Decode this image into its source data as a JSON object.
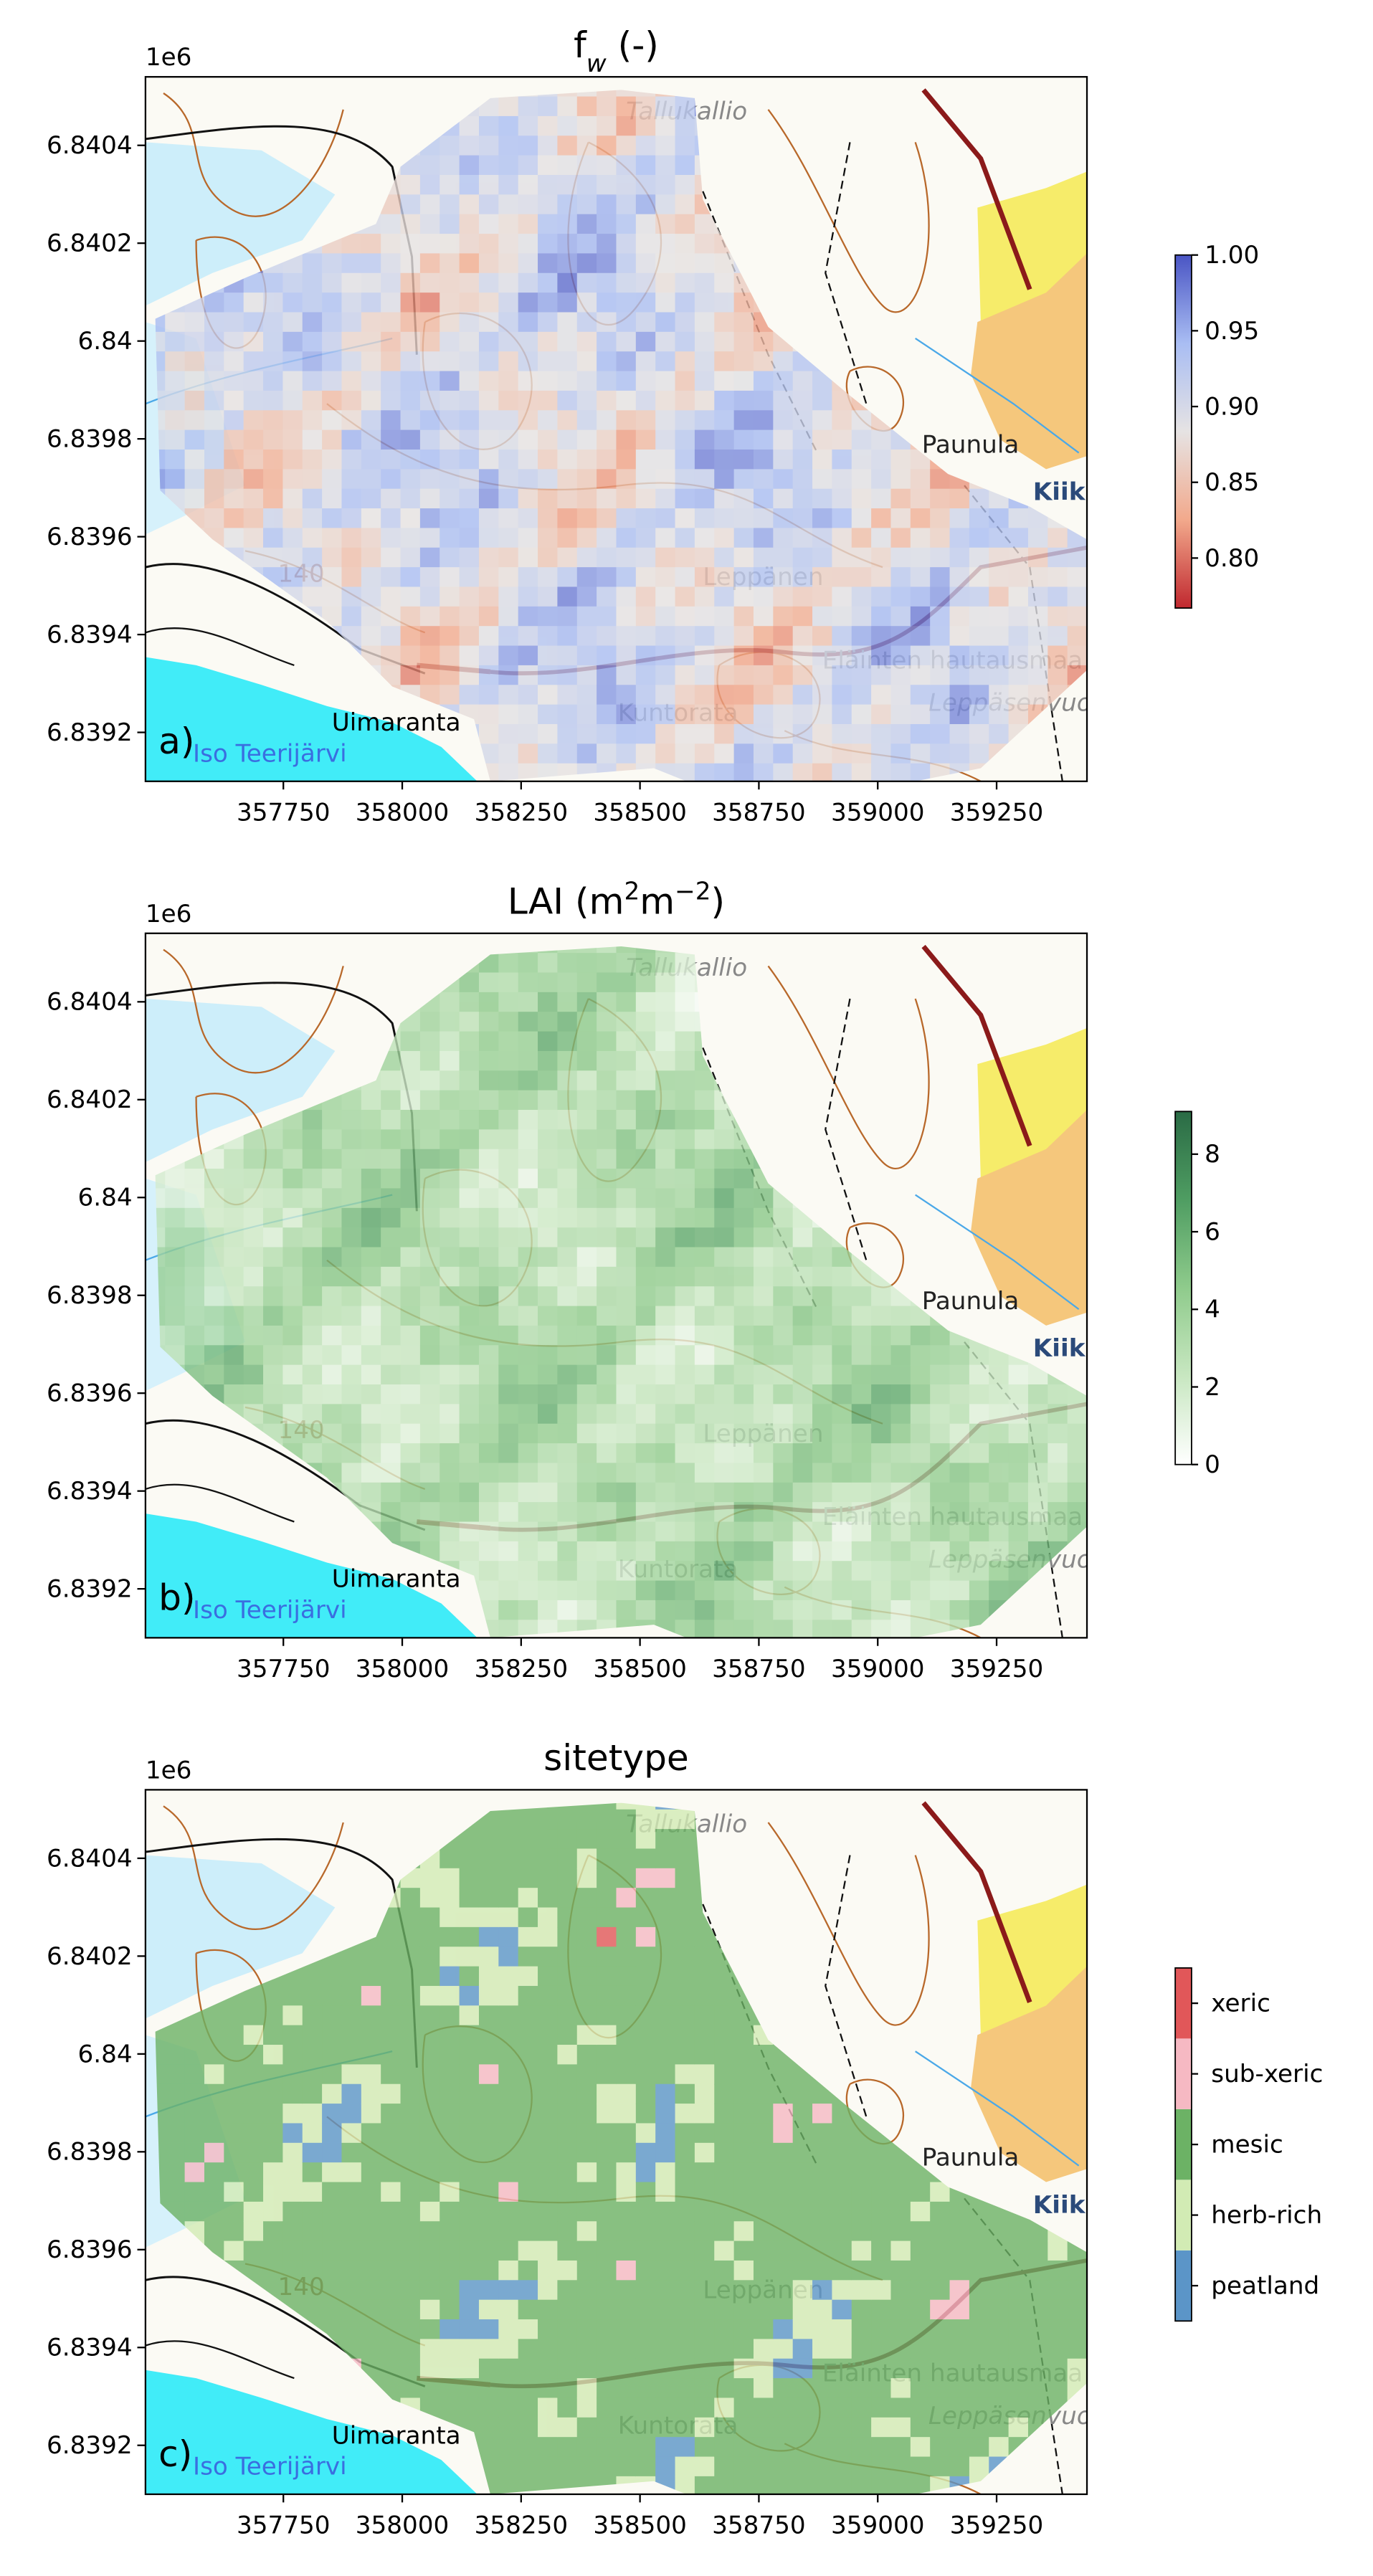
{
  "basemap": {
    "labels": [
      "Tallukallio",
      "Paunula",
      "Kiik",
      "Leppänen",
      "Eläinten hautausmaa",
      "Kuntorata",
      "Uimaranta",
      "Iso Teerijärvi",
      "Leppäsenvuor",
      "140"
    ]
  },
  "chart_data": [
    {
      "type": "raster",
      "title": [
        {
          "text": "f"
        },
        {
          "text": "w",
          "shift": "sub"
        },
        {
          "text": " (-)"
        }
      ],
      "panel_label": "a)",
      "xlim": [
        357460,
        359440
      ],
      "xticks": [
        357750,
        358000,
        358250,
        358500,
        358750,
        359000,
        359250
      ],
      "ylim": [
        6.8391,
        6.84054
      ],
      "yticks": [
        6.8392,
        6.8394,
        6.8396,
        6.8398,
        6.84,
        6.8402,
        6.8404
      ],
      "y_offset_label": "1e6",
      "colorbar": {
        "type": "continuous",
        "lim": [
          0.767,
          1.0
        ],
        "ticks": [
          {
            "value": 0.8,
            "label": "0.80"
          },
          {
            "value": 0.85,
            "label": "0.85"
          },
          {
            "value": 0.9,
            "label": "0.90"
          },
          {
            "value": 0.95,
            "label": "0.95"
          },
          {
            "value": 1.0,
            "label": "1.00"
          }
        ],
        "colors": [
          "#c0282f",
          "#f2a98c",
          "#e6e3e3",
          "#a9bdf3",
          "#4a55c4"
        ]
      }
    },
    {
      "type": "raster",
      "title": [
        {
          "text": "LAI (m"
        },
        {
          "text": "2",
          "shift": "super"
        },
        {
          "text": "m"
        },
        {
          "text": "−2",
          "shift": "super"
        },
        {
          "text": ")"
        }
      ],
      "panel_label": "b)",
      "xlim": [
        357460,
        359440
      ],
      "xticks": [
        357750,
        358000,
        358250,
        358500,
        358750,
        359000,
        359250
      ],
      "ylim": [
        6.8391,
        6.84054
      ],
      "yticks": [
        6.8392,
        6.8394,
        6.8396,
        6.8398,
        6.84,
        6.8402,
        6.8404
      ],
      "y_offset_label": "1e6",
      "colorbar": {
        "type": "continuous",
        "lim": [
          0,
          9.1
        ],
        "ticks": [
          0,
          2,
          4,
          6,
          8
        ],
        "colors": [
          "#ffffff",
          "#c8e7c1",
          "#8fcb8c",
          "#4f9d62",
          "#2a6b45"
        ]
      }
    },
    {
      "type": "raster",
      "title": [
        {
          "text": "sitetype"
        }
      ],
      "panel_label": "c)",
      "xlim": [
        357460,
        359440
      ],
      "xticks": [
        357750,
        358000,
        358250,
        358500,
        358750,
        359000,
        359250
      ],
      "ylim": [
        6.8391,
        6.84054
      ],
      "yticks": [
        6.8392,
        6.8394,
        6.8396,
        6.8398,
        6.84,
        6.8402,
        6.8404
      ],
      "y_offset_label": "1e6",
      "colorbar": {
        "type": "categorical",
        "categories": [
          "peatland",
          "herb-rich",
          "mesic",
          "sub-xeric",
          "xeric"
        ],
        "colors": [
          "#5b95c8",
          "#d2ebb4",
          "#6cb265",
          "#f6b9c3",
          "#e15759"
        ]
      }
    }
  ]
}
